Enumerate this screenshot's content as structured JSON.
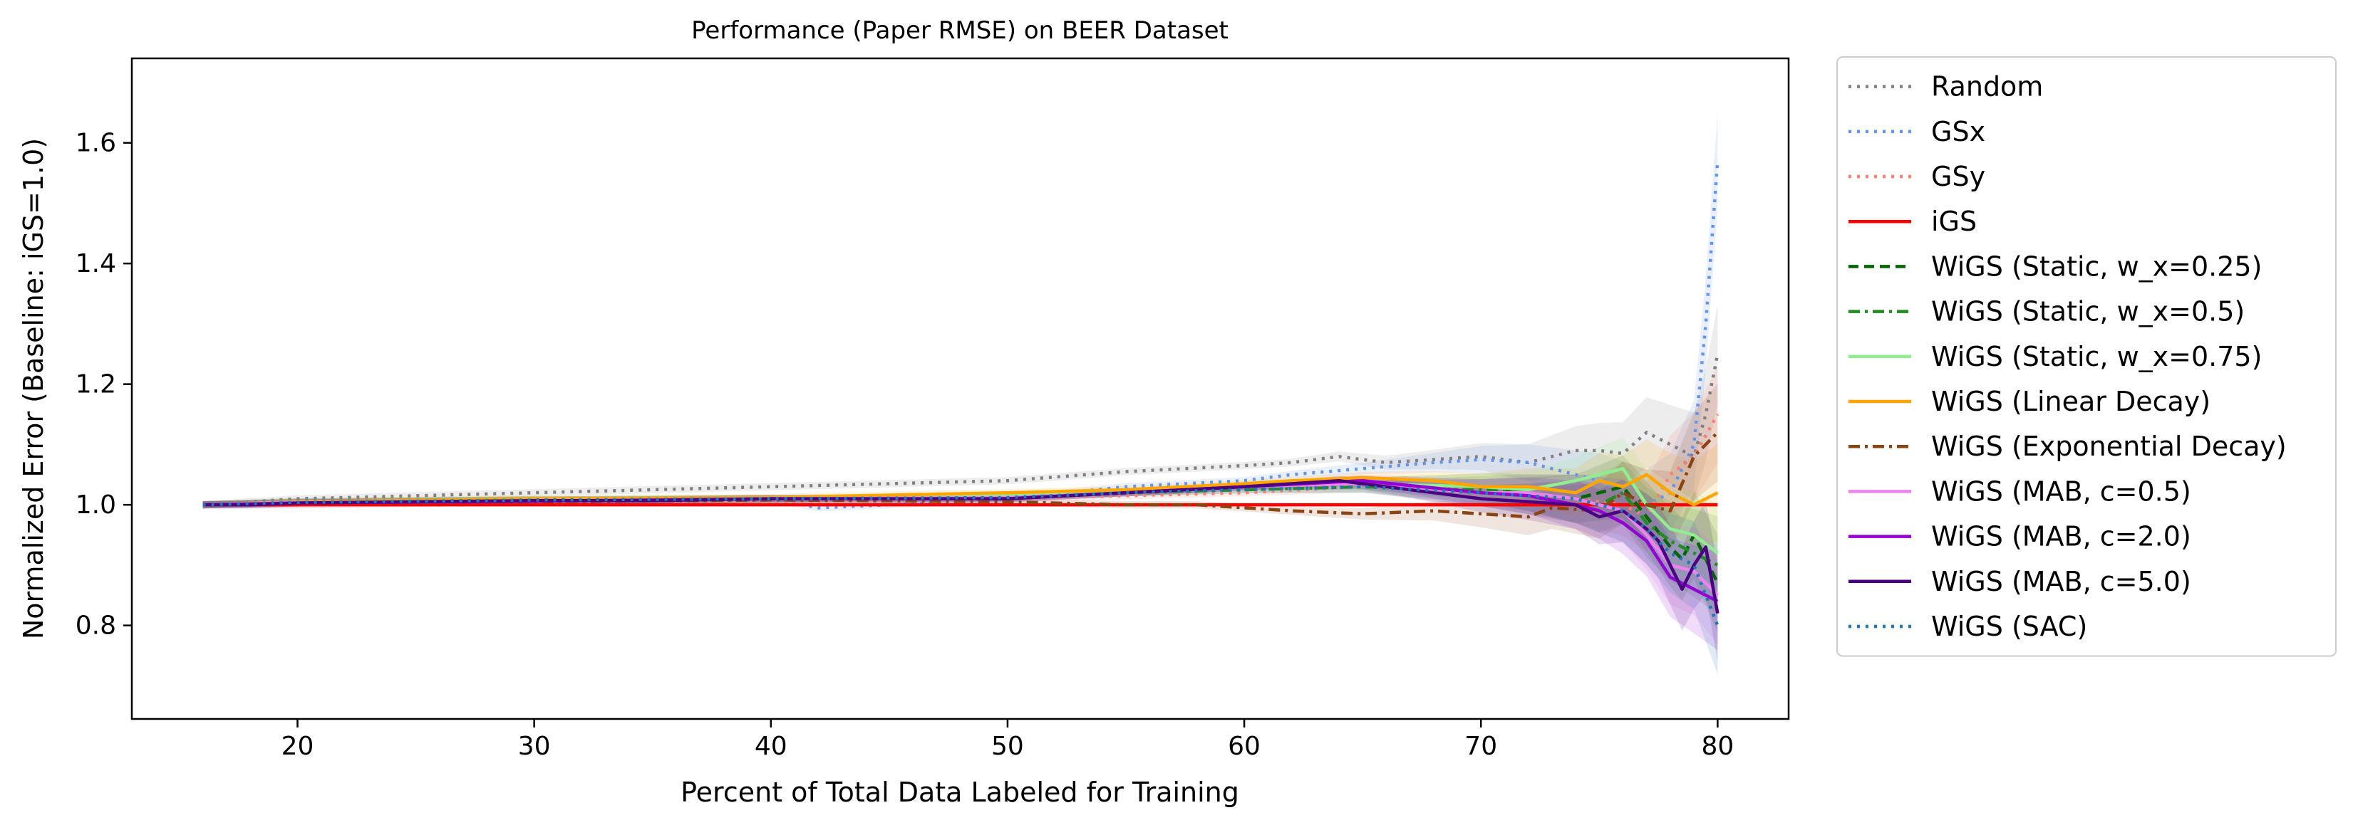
{
  "chart_data": {
    "type": "line",
    "title": "Performance (Paper RMSE) on BEER Dataset",
    "xlabel": "Percent of Total Data Labeled for Training",
    "ylabel": "Normalized Error (Baseline: iGS=1.0)",
    "xlim": [
      13,
      83
    ],
    "ylim": [
      0.645,
      1.74
    ],
    "xticks": [
      20,
      30,
      40,
      50,
      60,
      70,
      80
    ],
    "yticks": [
      0.8,
      1.0,
      1.2,
      1.4,
      1.6
    ],
    "xtick_labels": [
      "20",
      "30",
      "40",
      "50",
      "60",
      "70",
      "80"
    ],
    "ytick_labels": [
      "0.8",
      "1.0",
      "1.2",
      "1.4",
      "1.6"
    ],
    "grid": false,
    "legend_position": "outside-right",
    "series": [
      {
        "name": "Random",
        "color": "#808080",
        "dash": "dotted",
        "band": true,
        "x": [
          16,
          20,
          25,
          30,
          35,
          40,
          45,
          50,
          55,
          60,
          62,
          64,
          66,
          68,
          70,
          72,
          74,
          75,
          76,
          77,
          78,
          79,
          79.5,
          80
        ],
        "y": [
          1.0,
          1.01,
          1.015,
          1.02,
          1.025,
          1.03,
          1.035,
          1.04,
          1.055,
          1.065,
          1.07,
          1.08,
          1.07,
          1.075,
          1.08,
          1.07,
          1.09,
          1.09,
          1.085,
          1.12,
          1.1,
          1.08,
          1.15,
          1.25
        ]
      },
      {
        "name": "GSx",
        "color": "#6495ED",
        "dash": "dotted",
        "band": true,
        "x": [
          16,
          20,
          30,
          40,
          42,
          45,
          50,
          55,
          60,
          62,
          65,
          68,
          70,
          72,
          74,
          75,
          76,
          77,
          78,
          79,
          79.5,
          80
        ],
        "y": [
          1.0,
          1.0,
          1.005,
          1.01,
          0.995,
          1.0,
          1.01,
          1.03,
          1.04,
          1.05,
          1.06,
          1.07,
          1.075,
          1.07,
          1.05,
          1.04,
          1.02,
          1.0,
          1.02,
          1.1,
          1.3,
          1.57
        ]
      },
      {
        "name": "GSy",
        "color": "#FA8072",
        "dash": "dotted",
        "band": true,
        "x": [
          16,
          20,
          30,
          40,
          50,
          60,
          65,
          70,
          74,
          76,
          77,
          78,
          79,
          80
        ],
        "y": [
          1.0,
          1.0,
          1.005,
          1.005,
          1.01,
          1.02,
          1.03,
          1.02,
          1.01,
          1.0,
          0.98,
          1.05,
          1.08,
          1.15
        ]
      },
      {
        "name": "iGS",
        "color": "#FF0000",
        "dash": "solid",
        "band": false,
        "x": [
          16,
          80
        ],
        "y": [
          1.0,
          1.0
        ]
      },
      {
        "name": "WiGS (Static, w_x=0.25)",
        "color": "#006400",
        "dash": "dashed",
        "band": true,
        "x": [
          16,
          20,
          30,
          40,
          50,
          55,
          60,
          65,
          70,
          72,
          74,
          75,
          76,
          77,
          78,
          78.5,
          79,
          80
        ],
        "y": [
          1.0,
          1.005,
          1.008,
          1.01,
          1.015,
          1.02,
          1.03,
          1.035,
          1.03,
          1.02,
          1.01,
          1.02,
          1.03,
          0.98,
          0.93,
          0.91,
          0.95,
          0.87
        ]
      },
      {
        "name": "WiGS (Static, w_x=0.5)",
        "color": "#228B22",
        "dash": "dashdot",
        "band": true,
        "x": [
          16,
          20,
          30,
          40,
          50,
          55,
          60,
          65,
          70,
          72,
          74,
          75,
          76,
          77,
          78,
          79,
          80
        ],
        "y": [
          1.0,
          1.004,
          1.008,
          1.01,
          1.012,
          1.02,
          1.025,
          1.03,
          1.025,
          1.02,
          1.01,
          1.0,
          1.02,
          0.97,
          0.94,
          0.92,
          0.9
        ]
      },
      {
        "name": "WiGS (Static, w_x=0.75)",
        "color": "#90EE90",
        "dash": "solid",
        "band": true,
        "x": [
          16,
          20,
          30,
          40,
          50,
          55,
          60,
          65,
          70,
          72,
          74,
          75,
          76,
          77,
          78,
          79,
          80
        ],
        "y": [
          1.0,
          1.005,
          1.008,
          1.01,
          1.015,
          1.02,
          1.03,
          1.035,
          1.03,
          1.025,
          1.04,
          1.05,
          1.06,
          1.0,
          0.96,
          0.95,
          0.92
        ]
      },
      {
        "name": "WiGS (Linear Decay)",
        "color": "#FFA500",
        "dash": "solid",
        "band": true,
        "x": [
          16,
          20,
          30,
          40,
          50,
          55,
          60,
          62,
          65,
          68,
          70,
          72,
          74,
          75,
          76,
          77,
          78,
          79,
          80
        ],
        "y": [
          1.0,
          1.005,
          1.01,
          1.012,
          1.02,
          1.025,
          1.035,
          1.04,
          1.045,
          1.04,
          1.03,
          1.03,
          1.02,
          1.04,
          1.03,
          1.05,
          1.02,
          1.0,
          1.02
        ]
      },
      {
        "name": "WiGS (Exponential Decay)",
        "color": "#8B4513",
        "dash": "dashdot",
        "band": true,
        "x": [
          16,
          20,
          30,
          40,
          50,
          55,
          58,
          60,
          62,
          65,
          68,
          70,
          72,
          73,
          75,
          76,
          77,
          78,
          79,
          80
        ],
        "y": [
          1.0,
          1.003,
          1.005,
          1.008,
          1.005,
          1.0,
          1.0,
          0.995,
          0.99,
          0.985,
          0.99,
          0.985,
          0.98,
          0.995,
          0.99,
          1.02,
          1.0,
          0.99,
          1.08,
          1.12
        ]
      },
      {
        "name": "WiGS (MAB, c=0.5)",
        "color": "#EE82EE",
        "dash": "solid",
        "band": true,
        "x": [
          16,
          20,
          30,
          40,
          50,
          55,
          60,
          65,
          70,
          72,
          74,
          75,
          76,
          77,
          78,
          79,
          80
        ],
        "y": [
          1.0,
          1.004,
          1.006,
          1.01,
          1.012,
          1.02,
          1.03,
          1.035,
          1.02,
          1.02,
          1.01,
          1.0,
          0.99,
          0.95,
          0.9,
          0.89,
          0.85
        ]
      },
      {
        "name": "WiGS (MAB, c=2.0)",
        "color": "#9400D3",
        "dash": "solid",
        "band": true,
        "x": [
          16,
          20,
          30,
          40,
          50,
          55,
          60,
          65,
          70,
          72,
          74,
          75,
          76,
          77,
          78,
          79,
          80
        ],
        "y": [
          1.0,
          1.003,
          1.006,
          1.01,
          1.01,
          1.02,
          1.03,
          1.04,
          1.02,
          1.015,
          1.0,
          0.99,
          0.97,
          0.94,
          0.88,
          0.86,
          0.84
        ]
      },
      {
        "name": "WiGS (MAB, c=5.0)",
        "color": "#4B0082",
        "dash": "solid",
        "band": true,
        "x": [
          16,
          18,
          20,
          25,
          30,
          35,
          40,
          45,
          50,
          55,
          60,
          62,
          64,
          66,
          68,
          70,
          72,
          74,
          75,
          76,
          77,
          77.5,
          78,
          78.5,
          79,
          79.5,
          80
        ],
        "y": [
          1.0,
          1.0,
          1.003,
          1.005,
          1.007,
          1.007,
          1.01,
          1.01,
          1.01,
          1.02,
          1.03,
          1.035,
          1.04,
          1.03,
          1.02,
          1.01,
          1.005,
          1.0,
          0.98,
          0.99,
          0.96,
          0.94,
          0.9,
          0.86,
          0.9,
          0.93,
          0.82
        ]
      },
      {
        "name": "WiGS (SAC)",
        "color": "#1F77B4",
        "dash": "dotted",
        "band": true,
        "x": [
          16,
          20,
          30,
          40,
          50,
          55,
          60,
          65,
          70,
          72,
          74,
          76,
          77,
          78,
          79,
          80
        ],
        "y": [
          1.0,
          1.004,
          1.008,
          1.01,
          1.012,
          1.02,
          1.025,
          1.03,
          1.02,
          1.015,
          1.01,
          0.99,
          0.96,
          0.92,
          0.9,
          0.8
        ]
      }
    ]
  }
}
